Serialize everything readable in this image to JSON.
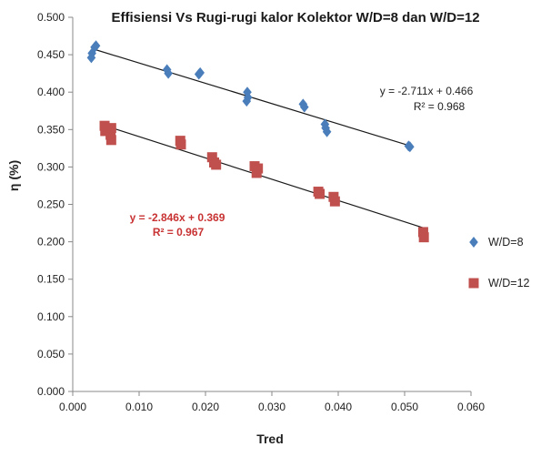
{
  "chart_data": {
    "type": "scatter",
    "title": "Effisiensi Vs Rugi-rugi kalor Kolektor W/D=8 dan W/D=12",
    "xlabel": "Tred",
    "ylabel": "η (%)",
    "xlim": [
      0,
      0.06
    ],
    "ylim": [
      0,
      0.5
    ],
    "x_ticks": [
      "0.000",
      "0.010",
      "0.020",
      "0.030",
      "0.040",
      "0.050",
      "0.060"
    ],
    "y_ticks": [
      "0.000",
      "0.050",
      "0.100",
      "0.150",
      "0.200",
      "0.250",
      "0.300",
      "0.350",
      "0.400",
      "0.450",
      "0.500"
    ],
    "grid": false,
    "legend_position": "right",
    "series": [
      {
        "name": "W/D=8",
        "marker": "diamond",
        "color": "#4a7ebb",
        "points": [
          [
            0.0028,
            0.446
          ],
          [
            0.0029,
            0.452
          ],
          [
            0.0033,
            0.46
          ],
          [
            0.0035,
            0.462
          ],
          [
            0.0142,
            0.43
          ],
          [
            0.0144,
            0.425
          ],
          [
            0.019,
            0.424
          ],
          [
            0.0192,
            0.426
          ],
          [
            0.0263,
            0.4
          ],
          [
            0.0264,
            0.393
          ],
          [
            0.0262,
            0.388
          ],
          [
            0.0347,
            0.384
          ],
          [
            0.0349,
            0.38
          ],
          [
            0.038,
            0.357
          ],
          [
            0.0381,
            0.352
          ],
          [
            0.0383,
            0.347
          ],
          [
            0.0506,
            0.328
          ],
          [
            0.0508,
            0.327
          ]
        ],
        "trendline": {
          "slope": -2.711,
          "intercept": 0.466,
          "x_range": [
            0.003,
            0.051
          ]
        },
        "equation": "y = -2.711x + 0.466",
        "r_squared": "R² = 0.968"
      },
      {
        "name": "W/D=12",
        "marker": "square",
        "color": "#c0504d",
        "points": [
          [
            0.0048,
            0.355
          ],
          [
            0.0049,
            0.348
          ],
          [
            0.0055,
            0.35
          ],
          [
            0.0058,
            0.352
          ],
          [
            0.0057,
            0.343
          ],
          [
            0.0058,
            0.336
          ],
          [
            0.0162,
            0.335
          ],
          [
            0.0163,
            0.33
          ],
          [
            0.021,
            0.313
          ],
          [
            0.0213,
            0.306
          ],
          [
            0.0216,
            0.303
          ],
          [
            0.0274,
            0.301
          ],
          [
            0.0279,
            0.298
          ],
          [
            0.0277,
            0.292
          ],
          [
            0.037,
            0.267
          ],
          [
            0.0372,
            0.264
          ],
          [
            0.0393,
            0.26
          ],
          [
            0.0395,
            0.254
          ],
          [
            0.0528,
            0.213
          ],
          [
            0.0529,
            0.206
          ]
        ],
        "trendline": {
          "slope": -2.846,
          "intercept": 0.369,
          "x_range": [
            0.005,
            0.053
          ]
        },
        "equation": "y = -2.846x + 0.369",
        "r_squared": "R² = 0.967"
      }
    ]
  }
}
